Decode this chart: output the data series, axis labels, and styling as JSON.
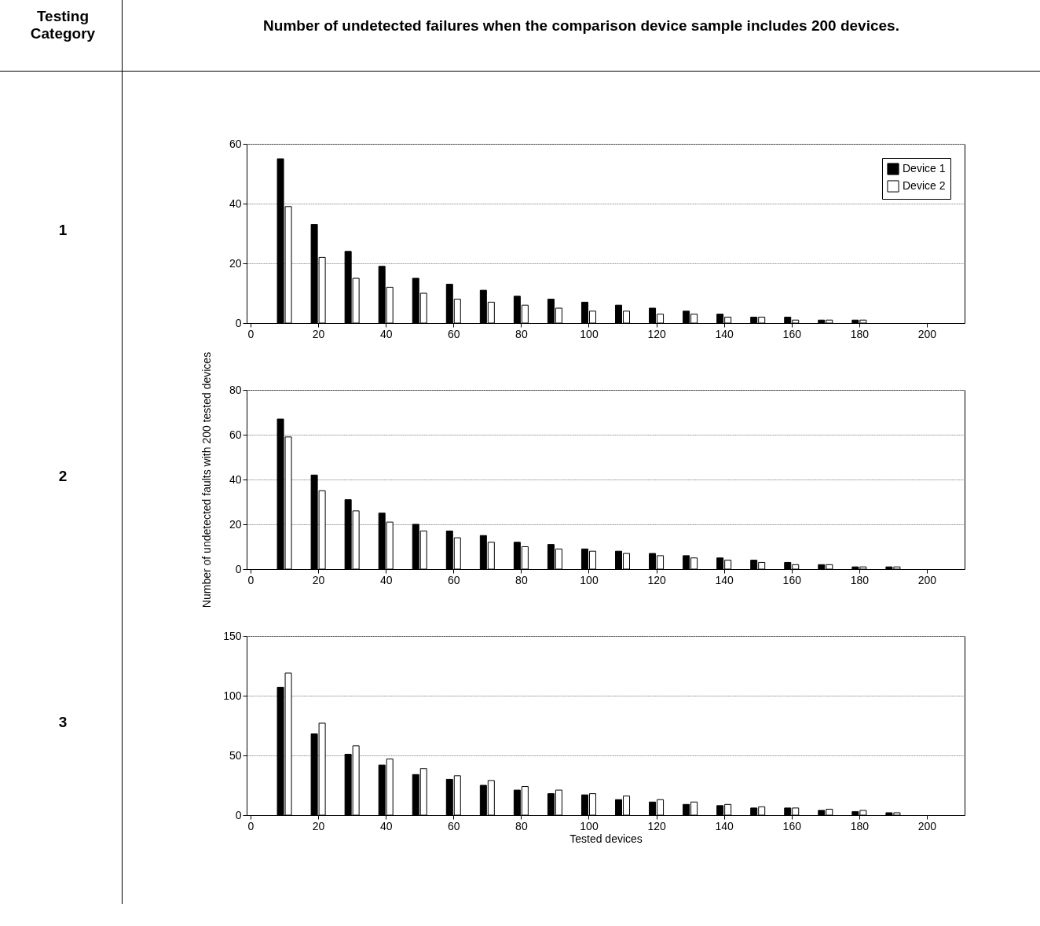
{
  "chart_data": [
    {
      "type": "bar",
      "title": "Number of undetected failures when the comparison device sample includes 200 devices.",
      "annotations": [
        "Testing Category",
        "1"
      ],
      "x": [
        10,
        20,
        30,
        40,
        50,
        60,
        70,
        80,
        90,
        100,
        110,
        120,
        130,
        140,
        150,
        160,
        170,
        180
      ],
      "xlim": [
        0,
        210
      ],
      "xticks": [
        0,
        20,
        40,
        60,
        80,
        100,
        120,
        140,
        160,
        180,
        200
      ],
      "ylim": [
        0,
        60
      ],
      "yticks": [
        0,
        20,
        40,
        60
      ],
      "grid": "y",
      "legend": "top right",
      "series": [
        {
          "name": "Device 1",
          "color": "#000000",
          "values": [
            55,
            33,
            24,
            19,
            15,
            13,
            11,
            9,
            8,
            7,
            6,
            5,
            4,
            3,
            2,
            2,
            1,
            1
          ]
        },
        {
          "name": "Device 2",
          "color": "#ffffff",
          "values": [
            39,
            22,
            15,
            12,
            10,
            8,
            7,
            6,
            5,
            4,
            4,
            3,
            3,
            2,
            2,
            1,
            1,
            1
          ]
        }
      ]
    },
    {
      "type": "bar",
      "annotations": [
        "2"
      ],
      "ylabel": "Number of undetected faults with 200 tested devices",
      "x": [
        10,
        20,
        30,
        40,
        50,
        60,
        70,
        80,
        90,
        100,
        110,
        120,
        130,
        140,
        150,
        160,
        170,
        180,
        190
      ],
      "xlim": [
        0,
        210
      ],
      "xticks": [
        0,
        20,
        40,
        60,
        80,
        100,
        120,
        140,
        160,
        180,
        200
      ],
      "ylim": [
        0,
        80
      ],
      "yticks": [
        0,
        20,
        40,
        60,
        80
      ],
      "grid": "y",
      "series": [
        {
          "color": "#000000",
          "values": [
            67,
            42,
            31,
            25,
            20,
            17,
            15,
            12,
            11,
            9,
            8,
            7,
            6,
            5,
            4,
            3,
            2,
            1,
            1
          ]
        },
        {
          "color": "#ffffff",
          "values": [
            59,
            35,
            26,
            21,
            17,
            14,
            12,
            10,
            9,
            8,
            7,
            6,
            5,
            4,
            3,
            2,
            2,
            1,
            1
          ]
        }
      ]
    },
    {
      "type": "bar",
      "annotations": [
        "3"
      ],
      "xlabel": "Tested devices",
      "x": [
        10,
        20,
        30,
        40,
        50,
        60,
        70,
        80,
        90,
        100,
        110,
        120,
        130,
        140,
        150,
        160,
        170,
        180,
        190
      ],
      "xlim": [
        0,
        210
      ],
      "xticks": [
        0,
        20,
        40,
        60,
        80,
        100,
        120,
        140,
        160,
        180,
        200
      ],
      "ylim": [
        0,
        150
      ],
      "yticks": [
        0,
        50,
        100,
        150
      ],
      "grid": "y",
      "series": [
        {
          "color": "#000000",
          "values": [
            107,
            68,
            51,
            42,
            34,
            30,
            25,
            21,
            18,
            17,
            13,
            11,
            9,
            8,
            6,
            6,
            4,
            3,
            2
          ]
        },
        {
          "color": "#ffffff",
          "values": [
            119,
            77,
            58,
            47,
            39,
            33,
            29,
            24,
            21,
            18,
            16,
            13,
            11,
            9,
            7,
            6,
            5,
            4,
            2
          ]
        }
      ]
    }
  ]
}
